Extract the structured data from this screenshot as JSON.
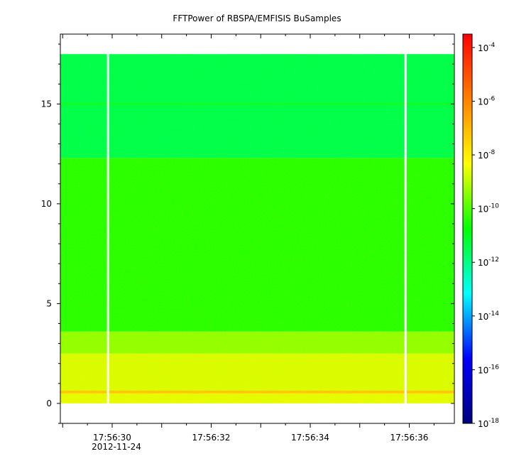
{
  "chart_data": {
    "type": "heatmap",
    "title": "FFTPower of RBSPA/EMFISIS  BuSamples",
    "xlabel": "",
    "ylabel": "",
    "x": {
      "tick_labels": [
        "17:56:30",
        "17:56:32",
        "17:56:34",
        "17:56:36"
      ],
      "first_tick_sublabel": "2012-11-24",
      "minor_ticks_per_major": 4
    },
    "y": {
      "range": [
        -1,
        18.5
      ],
      "ticks": [
        0,
        5,
        10,
        15
      ],
      "tick_labels": [
        "0",
        "5",
        "10",
        "15"
      ]
    },
    "colorbar": {
      "scale": "log",
      "range_exp": [
        -18,
        -3.5
      ],
      "tick_exponents": [
        -18,
        -16,
        -14,
        -12,
        -10,
        -8,
        -6,
        -4
      ],
      "base": "10",
      "colors": [
        "#00007f",
        "#0000ff",
        "#00ffff",
        "#00ff00",
        "#ffff00",
        "#ff8000",
        "#ff0000"
      ]
    },
    "bands": [
      {
        "y_from": 0,
        "y_to": 0.5,
        "level_exp": -8.6
      },
      {
        "y_from": 0.5,
        "y_to": 0.65,
        "level_exp": -7.4
      },
      {
        "y_from": 0.65,
        "y_to": 2.5,
        "level_exp": -8.7
      },
      {
        "y_from": 2.5,
        "y_to": 3.6,
        "level_exp": -9.4
      },
      {
        "y_from": 3.6,
        "y_to": 12.3,
        "level_exp": -10.4
      },
      {
        "y_from": 12.3,
        "y_to": 17.5,
        "level_exp": -11.5
      }
    ],
    "line_feature": {
      "y": 15.0,
      "level_exp": -10.5
    },
    "data_gaps_x_fraction": [
      0.121,
      0.876
    ]
  }
}
